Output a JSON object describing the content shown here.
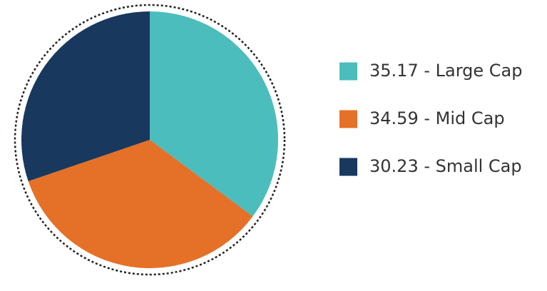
{
  "chart_data": {
    "type": "pie",
    "categories": [
      "35.17 - Large Cap",
      "34.59 - Mid Cap",
      "30.23 - Small Cap"
    ],
    "values": [
      35.17,
      34.59,
      30.23
    ],
    "colors": [
      "#4bbdbc",
      "#e57028",
      "#18385e"
    ],
    "legend": "right"
  }
}
